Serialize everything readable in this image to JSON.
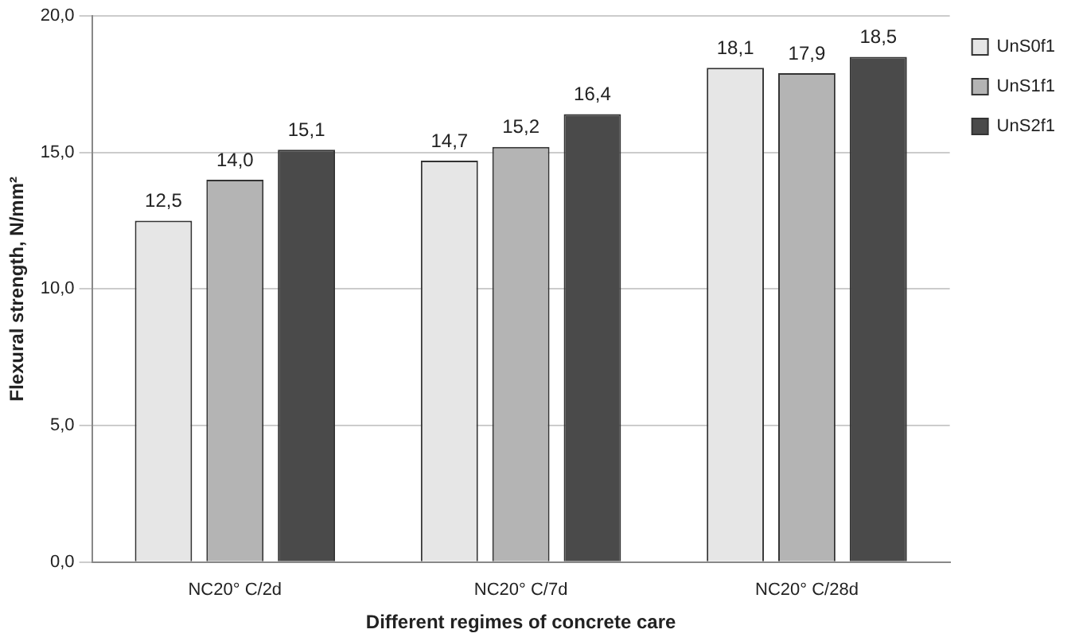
{
  "chart_data": {
    "type": "bar",
    "xlabel": "Different regimes of concrete care",
    "ylabel": "Flexural strength, N/mm²",
    "categories": [
      "NC20° C/2d",
      "NC20° C/7d",
      "NC20° C/28d"
    ],
    "series": [
      {
        "name": "UnS0f1",
        "color": "#e6e6e6",
        "values": [
          12.5,
          14.7,
          18.1
        ],
        "value_labels": [
          "12,5",
          "14,7",
          "18,1"
        ]
      },
      {
        "name": "UnS1f1",
        "color": "#b4b4b4",
        "values": [
          14.0,
          15.2,
          17.9
        ],
        "value_labels": [
          "14,0",
          "15,2",
          "17,9"
        ]
      },
      {
        "name": "UnS2f1",
        "color": "#4a4a4a",
        "values": [
          15.1,
          16.4,
          18.5
        ],
        "value_labels": [
          "15,1",
          "16,4",
          "18,5"
        ]
      }
    ],
    "ylim": [
      0,
      20
    ],
    "yticks": [
      {
        "value": 0,
        "label": "0,0"
      },
      {
        "value": 5,
        "label": "5,0"
      },
      {
        "value": 10,
        "label": "10,0"
      },
      {
        "value": 15,
        "label": "15,0"
      },
      {
        "value": 20,
        "label": "20,0"
      }
    ],
    "grid": "y",
    "legend": "right"
  }
}
